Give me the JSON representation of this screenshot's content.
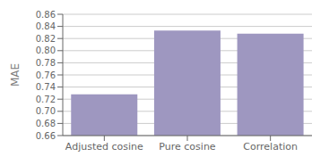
{
  "chart_data": {
    "type": "bar",
    "categories": [
      "Adjusted cosine",
      "Pure cosine",
      "Correlation"
    ],
    "values": [
      0.728,
      0.833,
      0.828
    ],
    "color": "#9E97C0",
    "ylabel": "MAE",
    "ylim": [
      0.66,
      0.86
    ],
    "yticks": [
      0.66,
      0.68,
      {
        "value": 0.7,
        "label": "0.70"
      },
      0.72,
      0.74,
      0.76,
      0.78,
      {
        "value": 0.8,
        "label": "0.80"
      },
      0.82,
      0.84,
      0.86
    ],
    "grid": true
  }
}
